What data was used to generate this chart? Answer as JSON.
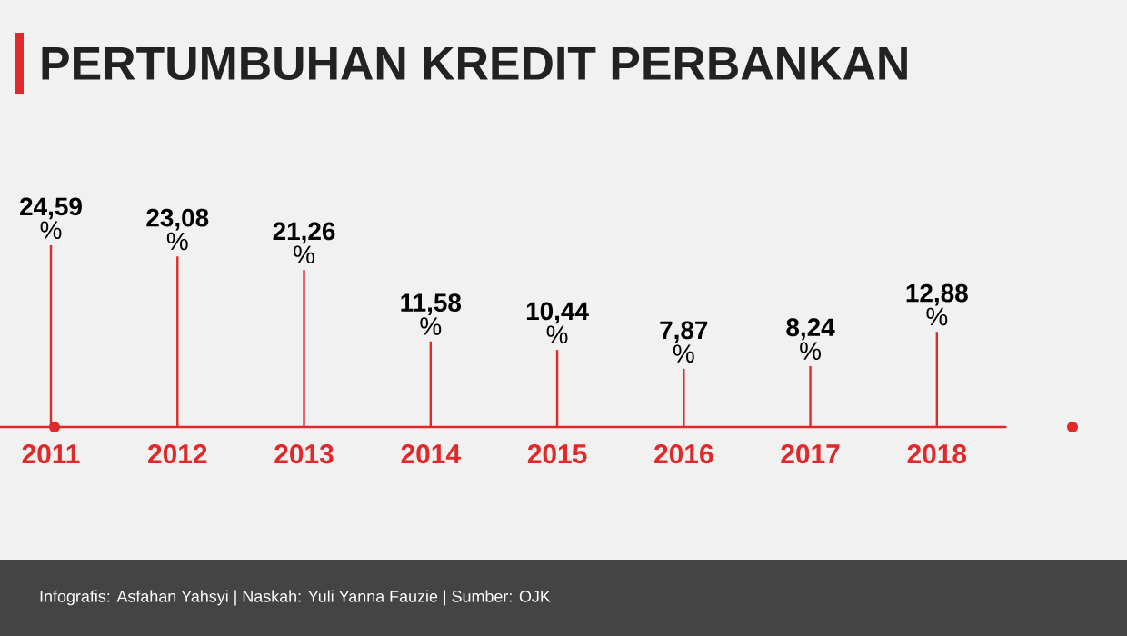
{
  "chart_data": {
    "type": "bar",
    "title": "PERTUMBUHAN KREDIT PERBANKAN",
    "categories": [
      "2011",
      "2012",
      "2013",
      "2014",
      "2015",
      "2016",
      "2017",
      "2018"
    ],
    "values": [
      24.59,
      23.08,
      21.26,
      11.58,
      10.44,
      7.87,
      8.24,
      12.88
    ],
    "value_labels": [
      "**24,59** %",
      "**23,08** %",
      "**21,26** %",
      "**11,58** %",
      "**10,44** %",
      "**7,87** %",
      "**8,24** %",
      "**12,88** %"
    ],
    "color": "#e0292a",
    "annotations": [
      "Infografis: Asfahan Yahsyi | Naskah: Yuli Yanna Fauzie | Sumber: OJK"
    ]
  }
}
